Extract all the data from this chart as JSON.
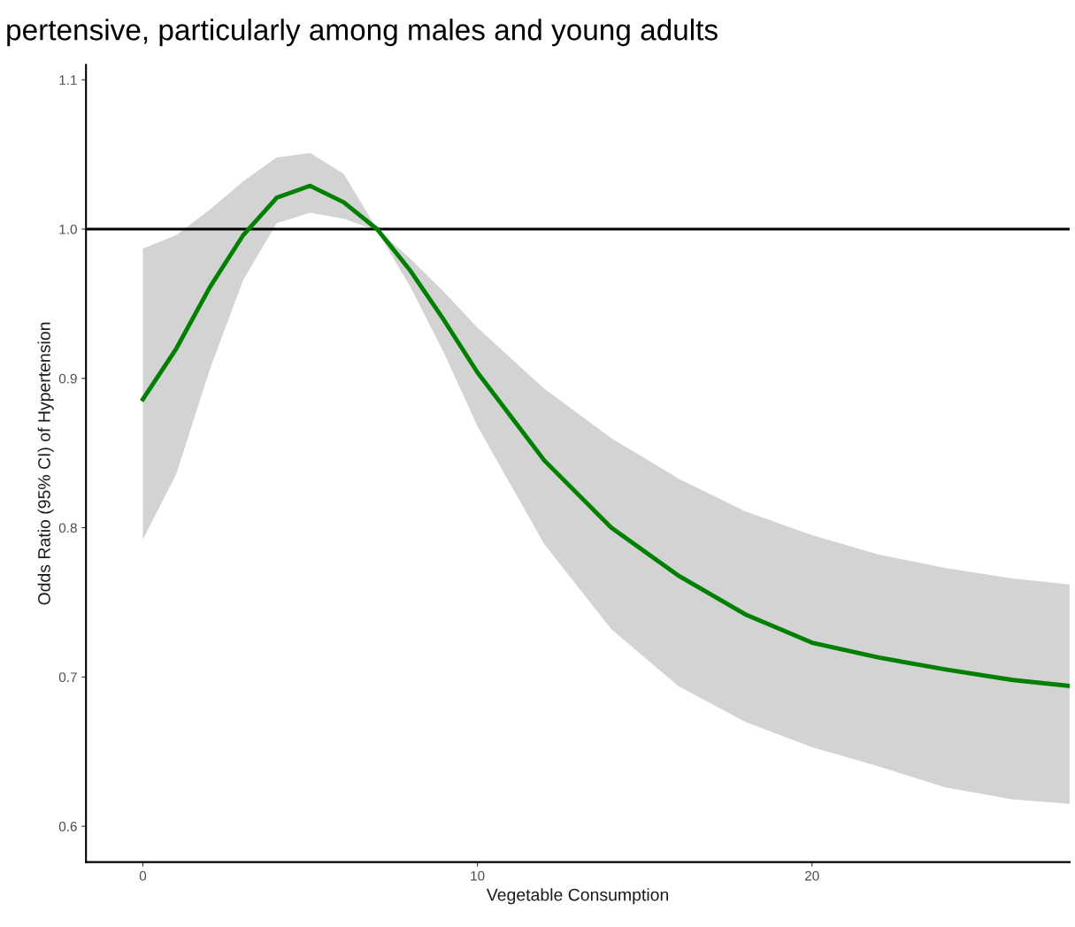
{
  "chart_data": {
    "type": "line",
    "title": "pertensive, particularly among males and young adults",
    "xlabel": "Vegetable Consumption",
    "ylabel": "Odds Ratio (95% CI) of Hypertension",
    "xlim": [
      -1.7,
      27.7
    ],
    "ylim": [
      0.576,
      1.11
    ],
    "xticks": [
      0,
      10,
      20
    ],
    "yticks": [
      0.6,
      0.7,
      0.8,
      0.9,
      {
        "value": 1,
        "label": "1.0"
      },
      1.1
    ],
    "grid": false,
    "marker": "none",
    "line_style": "solid",
    "series": [
      {
        "color": "#008000",
        "x": [
          0,
          1,
          2,
          3,
          4,
          5,
          6,
          7,
          8,
          9,
          10,
          12,
          14,
          16,
          18,
          20,
          22,
          24,
          26,
          27.7
        ],
        "values": [
          0.886,
          0.92,
          0.961,
          0.996,
          1.021,
          1.029,
          1.018,
          1.0,
          0.972,
          0.939,
          0.904,
          0.845,
          0.8,
          0.768,
          0.742,
          0.723,
          0.713,
          0.705,
          0.698,
          0.694
        ],
        "lower": [
          0.792,
          0.836,
          0.906,
          0.966,
          1.004,
          1.011,
          1.007,
          0.999,
          0.961,
          0.917,
          0.868,
          0.789,
          0.732,
          0.694,
          0.67,
          0.653,
          0.64,
          0.626,
          0.618,
          0.615
        ],
        "upper": [
          0.987,
          0.996,
          1.013,
          1.032,
          1.048,
          1.051,
          1.037,
          1.0,
          0.98,
          0.958,
          0.934,
          0.893,
          0.86,
          0.833,
          0.811,
          0.795,
          0.782,
          0.773,
          0.766,
          0.762
        ]
      }
    ],
    "ref_lines": [
      {
        "axis": "y",
        "value": 1.0,
        "color": "#000000",
        "line_style": "solid"
      }
    ]
  }
}
